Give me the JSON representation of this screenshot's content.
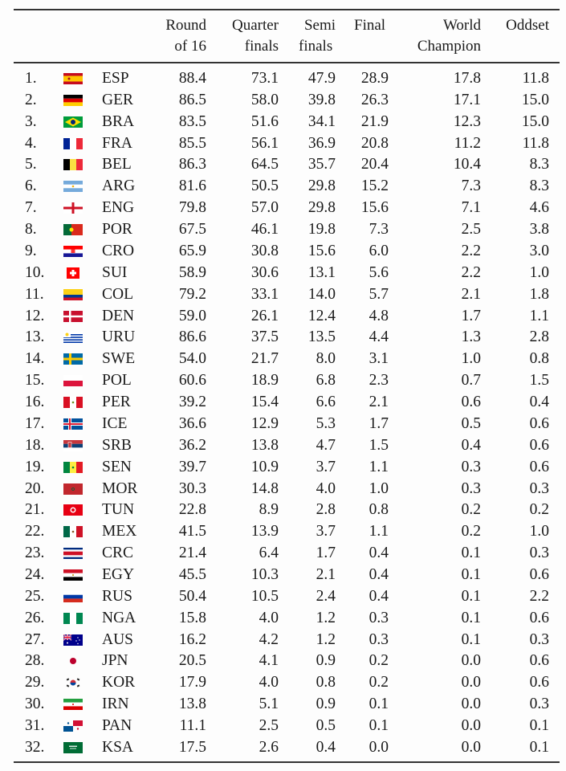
{
  "table": {
    "headers": {
      "round_of_16": [
        "Round",
        "of 16"
      ],
      "quarter_finals": [
        "Quarter",
        "finals"
      ],
      "semi_finals": [
        "Semi",
        "finals"
      ],
      "final": [
        "Final"
      ],
      "world_champion": [
        "World",
        "Champion"
      ],
      "oddset": [
        "Oddset"
      ]
    },
    "rows": [
      {
        "rank": "1.",
        "flag": "flag-spain-icon",
        "code": "ESP",
        "r16": "88.4",
        "qf": "73.1",
        "sf": "47.9",
        "final": "28.9",
        "wc": "17.8",
        "oddset": "11.8"
      },
      {
        "rank": "2.",
        "flag": "flag-germany-icon",
        "code": "GER",
        "r16": "86.5",
        "qf": "58.0",
        "sf": "39.8",
        "final": "26.3",
        "wc": "17.1",
        "oddset": "15.0"
      },
      {
        "rank": "3.",
        "flag": "flag-brazil-icon",
        "code": "BRA",
        "r16": "83.5",
        "qf": "51.6",
        "sf": "34.1",
        "final": "21.9",
        "wc": "12.3",
        "oddset": "15.0"
      },
      {
        "rank": "4.",
        "flag": "flag-france-icon",
        "code": "FRA",
        "r16": "85.5",
        "qf": "56.1",
        "sf": "36.9",
        "final": "20.8",
        "wc": "11.2",
        "oddset": "11.8"
      },
      {
        "rank": "5.",
        "flag": "flag-belgium-icon",
        "code": "BEL",
        "r16": "86.3",
        "qf": "64.5",
        "sf": "35.7",
        "final": "20.4",
        "wc": "10.4",
        "oddset": "8.3"
      },
      {
        "rank": "6.",
        "flag": "flag-argentina-icon",
        "code": "ARG",
        "r16": "81.6",
        "qf": "50.5",
        "sf": "29.8",
        "final": "15.2",
        "wc": "7.3",
        "oddset": "8.3"
      },
      {
        "rank": "7.",
        "flag": "flag-england-icon",
        "code": "ENG",
        "r16": "79.8",
        "qf": "57.0",
        "sf": "29.8",
        "final": "15.6",
        "wc": "7.1",
        "oddset": "4.6"
      },
      {
        "rank": "8.",
        "flag": "flag-portugal-icon",
        "code": "POR",
        "r16": "67.5",
        "qf": "46.1",
        "sf": "19.8",
        "final": "7.3",
        "wc": "2.5",
        "oddset": "3.8"
      },
      {
        "rank": "9.",
        "flag": "flag-croatia-icon",
        "code": "CRO",
        "r16": "65.9",
        "qf": "30.8",
        "sf": "15.6",
        "final": "6.0",
        "wc": "2.2",
        "oddset": "3.0"
      },
      {
        "rank": "10.",
        "flag": "flag-switzerland-icon",
        "code": "SUI",
        "r16": "58.9",
        "qf": "30.6",
        "sf": "13.1",
        "final": "5.6",
        "wc": "2.2",
        "oddset": "1.0"
      },
      {
        "rank": "11.",
        "flag": "flag-colombia-icon",
        "code": "COL",
        "r16": "79.2",
        "qf": "33.1",
        "sf": "14.0",
        "final": "5.7",
        "wc": "2.1",
        "oddset": "1.8"
      },
      {
        "rank": "12.",
        "flag": "flag-denmark-icon",
        "code": "DEN",
        "r16": "59.0",
        "qf": "26.1",
        "sf": "12.4",
        "final": "4.8",
        "wc": "1.7",
        "oddset": "1.1"
      },
      {
        "rank": "13.",
        "flag": "flag-uruguay-icon",
        "code": "URU",
        "r16": "86.6",
        "qf": "37.5",
        "sf": "13.5",
        "final": "4.4",
        "wc": "1.3",
        "oddset": "2.8"
      },
      {
        "rank": "14.",
        "flag": "flag-sweden-icon",
        "code": "SWE",
        "r16": "54.0",
        "qf": "21.7",
        "sf": "8.0",
        "final": "3.1",
        "wc": "1.0",
        "oddset": "0.8"
      },
      {
        "rank": "15.",
        "flag": "flag-poland-icon",
        "code": "POL",
        "r16": "60.6",
        "qf": "18.9",
        "sf": "6.8",
        "final": "2.3",
        "wc": "0.7",
        "oddset": "1.5"
      },
      {
        "rank": "16.",
        "flag": "flag-peru-icon",
        "code": "PER",
        "r16": "39.2",
        "qf": "15.4",
        "sf": "6.6",
        "final": "2.1",
        "wc": "0.6",
        "oddset": "0.4"
      },
      {
        "rank": "17.",
        "flag": "flag-iceland-icon",
        "code": "ICE",
        "r16": "36.6",
        "qf": "12.9",
        "sf": "5.3",
        "final": "1.7",
        "wc": "0.5",
        "oddset": "0.6"
      },
      {
        "rank": "18.",
        "flag": "flag-serbia-icon",
        "code": "SRB",
        "r16": "36.2",
        "qf": "13.8",
        "sf": "4.7",
        "final": "1.5",
        "wc": "0.4",
        "oddset": "0.6"
      },
      {
        "rank": "19.",
        "flag": "flag-senegal-icon",
        "code": "SEN",
        "r16": "39.7",
        "qf": "10.9",
        "sf": "3.7",
        "final": "1.1",
        "wc": "0.3",
        "oddset": "0.6"
      },
      {
        "rank": "20.",
        "flag": "flag-morocco-icon",
        "code": "MOR",
        "r16": "30.3",
        "qf": "14.8",
        "sf": "4.0",
        "final": "1.0",
        "wc": "0.3",
        "oddset": "0.3"
      },
      {
        "rank": "21.",
        "flag": "flag-tunisia-icon",
        "code": "TUN",
        "r16": "22.8",
        "qf": "8.9",
        "sf": "2.8",
        "final": "0.8",
        "wc": "0.2",
        "oddset": "0.2"
      },
      {
        "rank": "22.",
        "flag": "flag-mexico-icon",
        "code": "MEX",
        "r16": "41.5",
        "qf": "13.9",
        "sf": "3.7",
        "final": "1.1",
        "wc": "0.2",
        "oddset": "1.0"
      },
      {
        "rank": "23.",
        "flag": "flag-costa-rica-icon",
        "code": "CRC",
        "r16": "21.4",
        "qf": "6.4",
        "sf": "1.7",
        "final": "0.4",
        "wc": "0.1",
        "oddset": "0.3"
      },
      {
        "rank": "24.",
        "flag": "flag-egypt-icon",
        "code": "EGY",
        "r16": "45.5",
        "qf": "10.3",
        "sf": "2.1",
        "final": "0.4",
        "wc": "0.1",
        "oddset": "0.6"
      },
      {
        "rank": "25.",
        "flag": "flag-russia-icon",
        "code": "RUS",
        "r16": "50.4",
        "qf": "10.5",
        "sf": "2.4",
        "final": "0.4",
        "wc": "0.1",
        "oddset": "2.2"
      },
      {
        "rank": "26.",
        "flag": "flag-nigeria-icon",
        "code": "NGA",
        "r16": "15.8",
        "qf": "4.0",
        "sf": "1.2",
        "final": "0.3",
        "wc": "0.1",
        "oddset": "0.6"
      },
      {
        "rank": "27.",
        "flag": "flag-australia-icon",
        "code": "AUS",
        "r16": "16.2",
        "qf": "4.2",
        "sf": "1.2",
        "final": "0.3",
        "wc": "0.1",
        "oddset": "0.3"
      },
      {
        "rank": "28.",
        "flag": "flag-japan-icon",
        "code": "JPN",
        "r16": "20.5",
        "qf": "4.1",
        "sf": "0.9",
        "final": "0.2",
        "wc": "0.0",
        "oddset": "0.6"
      },
      {
        "rank": "29.",
        "flag": "flag-korea-icon",
        "code": "KOR",
        "r16": "17.9",
        "qf": "4.0",
        "sf": "0.8",
        "final": "0.2",
        "wc": "0.0",
        "oddset": "0.6"
      },
      {
        "rank": "30.",
        "flag": "flag-iran-icon",
        "code": "IRN",
        "r16": "13.8",
        "qf": "5.1",
        "sf": "0.9",
        "final": "0.1",
        "wc": "0.0",
        "oddset": "0.3"
      },
      {
        "rank": "31.",
        "flag": "flag-panama-icon",
        "code": "PAN",
        "r16": "11.1",
        "qf": "2.5",
        "sf": "0.5",
        "final": "0.1",
        "wc": "0.0",
        "oddset": "0.1"
      },
      {
        "rank": "32.",
        "flag": "flag-saudi-arabia-icon",
        "code": "KSA",
        "r16": "17.5",
        "qf": "2.6",
        "sf": "0.4",
        "final": "0.0",
        "wc": "0.0",
        "oddset": "0.1"
      }
    ]
  }
}
